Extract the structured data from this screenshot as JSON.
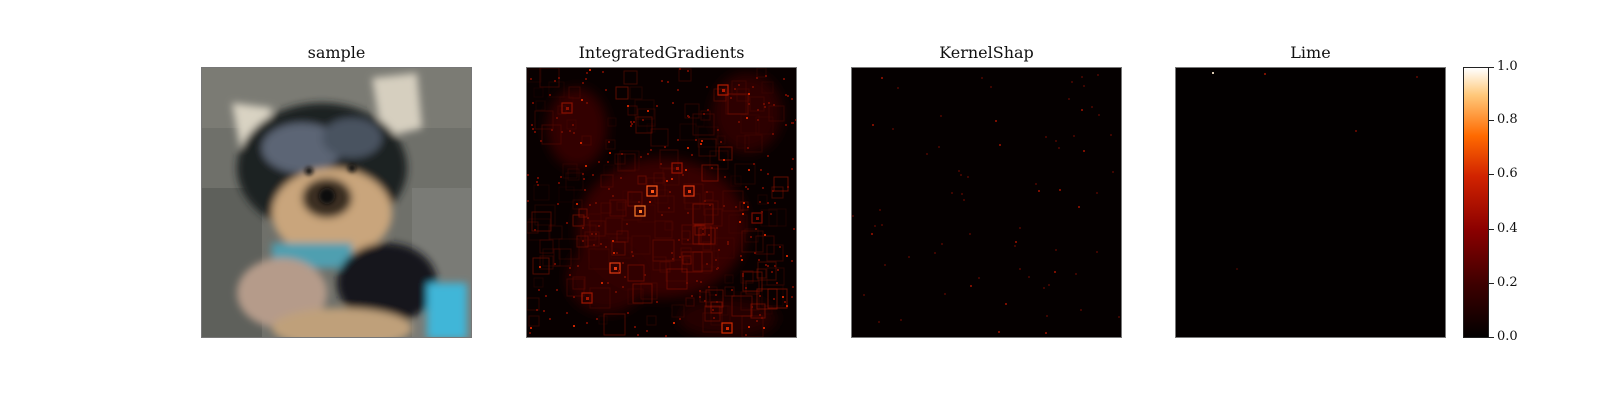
{
  "chart_data": {
    "type": "heatmap",
    "panels": [
      {
        "title": "sample",
        "kind": "image"
      },
      {
        "title": "IntegratedGradients",
        "kind": "attribution",
        "intensity": "medium"
      },
      {
        "title": "KernelShap",
        "kind": "attribution",
        "intensity": "low"
      },
      {
        "title": "Lime",
        "kind": "attribution",
        "intensity": "very-low"
      }
    ],
    "colorbar": {
      "colormap": "gist_heat",
      "range": [
        0.0,
        1.0
      ],
      "ticks": [
        "0.0",
        "0.2",
        "0.4",
        "0.6",
        "0.8",
        "1.0"
      ]
    }
  }
}
